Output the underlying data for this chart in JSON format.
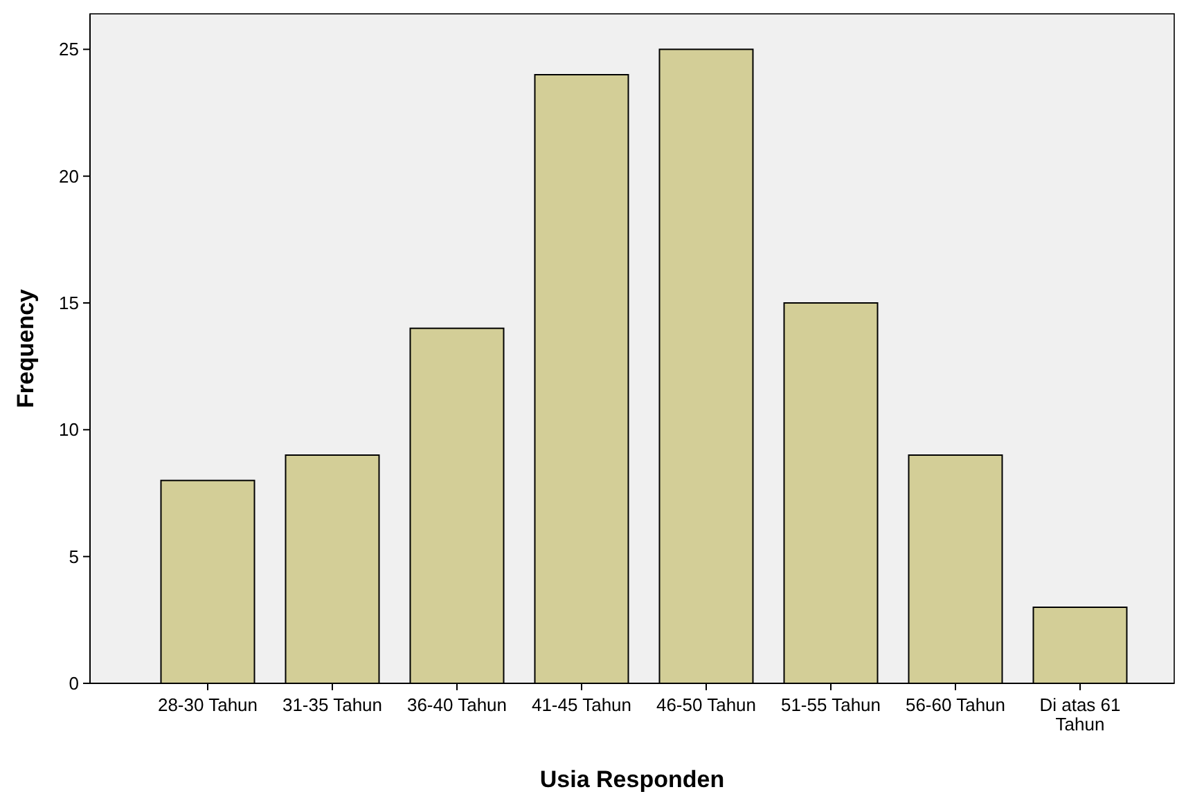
{
  "chart_data": {
    "type": "bar",
    "xlabel": "Usia Responden",
    "ylabel": "Frequency",
    "categories": [
      "28-30 Tahun",
      "31-35 Tahun",
      "36-40 Tahun",
      "41-45 Tahun",
      "46-50 Tahun",
      "51-55 Tahun",
      "56-60 Tahun",
      "Di atas 61 Tahun"
    ],
    "values": [
      8,
      9,
      14,
      24,
      25,
      15,
      9,
      3
    ],
    "color": "#d3ce97",
    "ylim": [
      0,
      26.4
    ],
    "yticks": [
      0,
      5,
      10,
      15,
      20,
      25
    ],
    "grid": false
  }
}
